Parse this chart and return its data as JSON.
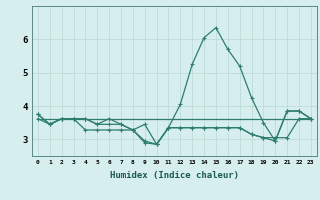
{
  "xlabel": "Humidex (Indice chaleur)",
  "x_values": [
    0,
    1,
    2,
    3,
    4,
    5,
    6,
    7,
    8,
    9,
    10,
    11,
    12,
    13,
    14,
    15,
    16,
    17,
    18,
    19,
    20,
    21,
    22,
    23
  ],
  "line1": [
    3.75,
    3.45,
    3.62,
    3.62,
    3.62,
    3.45,
    3.62,
    3.45,
    3.28,
    2.9,
    2.85,
    3.35,
    4.05,
    5.25,
    6.05,
    6.35,
    5.7,
    5.2,
    4.25,
    3.5,
    2.95,
    3.85,
    3.85,
    3.62
  ],
  "line2": [
    3.75,
    3.45,
    3.62,
    3.62,
    3.62,
    3.45,
    3.45,
    3.45,
    3.28,
    2.95,
    2.85,
    3.35,
    3.35,
    3.35,
    3.35,
    3.35,
    3.35,
    3.35,
    3.15,
    3.05,
    3.05,
    3.05,
    3.62,
    3.62
  ],
  "line3": [
    3.62,
    3.62,
    3.62,
    3.62,
    3.62,
    3.62,
    3.62,
    3.62,
    3.62,
    3.62,
    3.62,
    3.62,
    3.62,
    3.62,
    3.62,
    3.62,
    3.62,
    3.62,
    3.62,
    3.62,
    3.62,
    3.62,
    3.62,
    3.62
  ],
  "line4": [
    3.62,
    3.45,
    3.62,
    3.62,
    3.28,
    3.28,
    3.28,
    3.28,
    3.28,
    3.45,
    2.85,
    3.35,
    3.35,
    3.35,
    3.35,
    3.35,
    3.35,
    3.35,
    3.15,
    3.05,
    2.95,
    3.85,
    3.85,
    3.62
  ],
  "line_color": "#2e7d6e",
  "bg_color": "#d6eeed",
  "grid_color": "#b8d8d4",
  "ylim": [
    2.5,
    7.0
  ],
  "yticks": [
    3,
    4,
    5,
    6
  ],
  "xticks": [
    0,
    1,
    2,
    3,
    4,
    5,
    6,
    7,
    8,
    9,
    10,
    11,
    12,
    13,
    14,
    15,
    16,
    17,
    18,
    19,
    20,
    21,
    22,
    23
  ],
  "marker": "+",
  "markersize": 3,
  "linewidth": 0.9
}
